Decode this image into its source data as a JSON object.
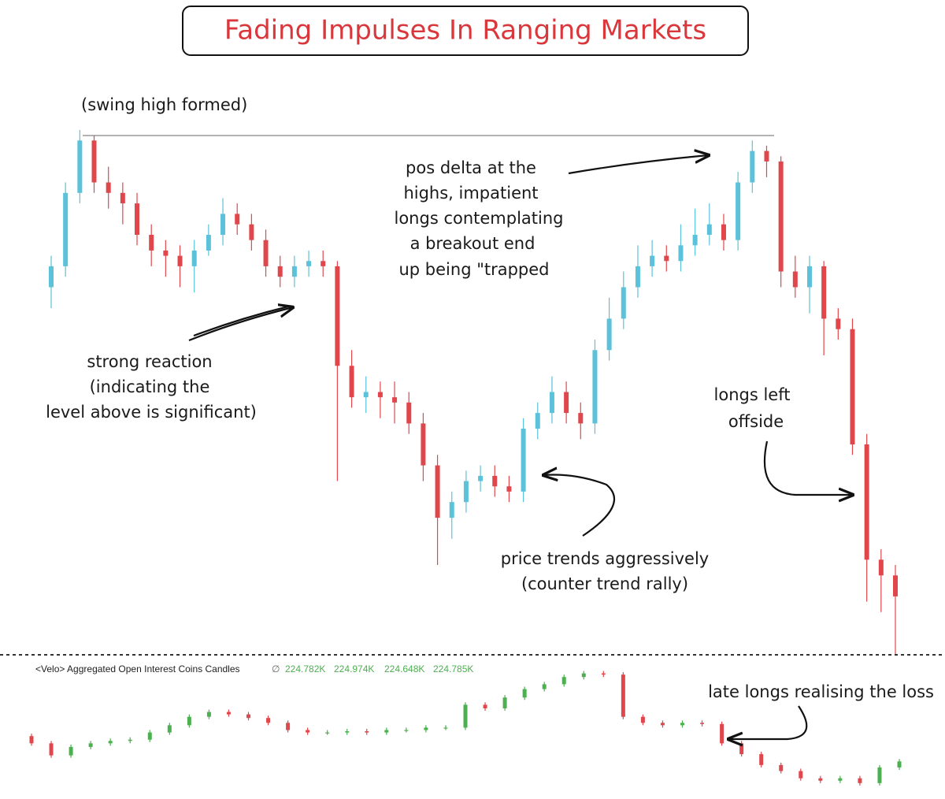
{
  "chart_data": [
    {
      "type": "candlestick",
      "title": "Fading Impulses In Ranging Markets",
      "up_color": "#5bc2d9",
      "down_color": "#e0474c",
      "ylim": [
        0,
        100
      ],
      "open": [
        70,
        74,
        88,
        98,
        90,
        88,
        86,
        80,
        77,
        76,
        74,
        77,
        80,
        84,
        82,
        79,
        74,
        72,
        74,
        75,
        74,
        55,
        49,
        50,
        49,
        48,
        44,
        36,
        26,
        29,
        33,
        34,
        32,
        31,
        43,
        46,
        50,
        46,
        44,
        58,
        64,
        70,
        74,
        76,
        75,
        78,
        80,
        82,
        79,
        90,
        96,
        94,
        73,
        70,
        74,
        64,
        62,
        40,
        18,
        15
      ],
      "high": [
        76,
        90,
        100,
        99,
        93,
        90,
        88,
        82,
        79,
        78,
        79,
        82,
        87,
        86,
        84,
        81,
        76,
        76,
        77,
        77,
        75,
        58,
        53,
        52,
        52,
        50,
        46,
        38,
        31,
        35,
        36,
        36,
        34,
        45,
        48,
        53,
        52,
        48,
        60,
        68,
        73,
        78,
        79,
        78,
        82,
        85,
        86,
        84,
        92,
        98,
        97,
        95,
        76,
        76,
        75,
        66,
        64,
        42,
        20,
        17
      ],
      "low": [
        66,
        72,
        86,
        88,
        85,
        82,
        78,
        74,
        72,
        70,
        69,
        76,
        78,
        80,
        77,
        72,
        70,
        70,
        72,
        72,
        33,
        47,
        46,
        45,
        44,
        42,
        33,
        17,
        22,
        27,
        31,
        30,
        29,
        29,
        41,
        44,
        44,
        41,
        42,
        56,
        62,
        68,
        72,
        73,
        73,
        76,
        78,
        77,
        77,
        88,
        91,
        70,
        68,
        65,
        57,
        60,
        38,
        10,
        8,
        0
      ],
      "close": [
        74,
        88,
        98,
        90,
        88,
        86,
        80,
        77,
        76,
        74,
        77,
        80,
        84,
        82,
        79,
        74,
        72,
        74,
        75,
        74,
        55,
        49,
        50,
        49,
        48,
        44,
        36,
        26,
        29,
        33,
        34,
        32,
        31,
        43,
        46,
        50,
        46,
        44,
        58,
        64,
        70,
        74,
        76,
        75,
        78,
        80,
        82,
        79,
        90,
        96,
        94,
        73,
        70,
        74,
        64,
        62,
        40,
        18,
        15,
        11
      ],
      "annotations": [
        {
          "lines": [
            "(swing high formed)"
          ]
        },
        {
          "lines": [
            "pos delta at the",
            "highs, impatient",
            "longs contemplating",
            "a breakout end",
            "up being \"trapped"
          ]
        },
        {
          "lines": [
            "strong reaction",
            "(indicating the",
            "level above is significant)"
          ]
        },
        {
          "lines": [
            "longs left",
            "offside"
          ]
        },
        {
          "lines": [
            "price trends aggressively",
            "(counter trend rally)"
          ]
        }
      ]
    },
    {
      "type": "candlestick",
      "title": "<Velo> Aggregated Open Interest Coins Candles",
      "symbol": "∅",
      "header_values": [
        "224.782K",
        "224.974K",
        "224.648K",
        "224.785K"
      ],
      "up_color": "#4caf50",
      "down_color": "#e0474c",
      "ylim": [
        0,
        100
      ],
      "open": [
        45,
        39,
        29,
        36,
        39,
        41,
        42,
        48,
        54,
        61,
        65,
        63,
        60,
        56,
        50,
        48,
        48,
        49,
        48,
        50,
        50,
        52,
        52,
        71,
        68,
        77,
        84,
        88,
        94,
        97,
        96,
        61,
        56,
        54,
        56,
        55,
        39,
        30,
        21,
        16,
        10,
        8,
        10,
        6,
        19
      ],
      "high": [
        47,
        41,
        38,
        41,
        43,
        44,
        50,
        56,
        63,
        67,
        67,
        65,
        62,
        58,
        52,
        50,
        51,
        51,
        52,
        52,
        54,
        54,
        73,
        73,
        79,
        86,
        90,
        96,
        99,
        99,
        98,
        63,
        58,
        58,
        58,
        57,
        41,
        32,
        23,
        18,
        12,
        12,
        12,
        21,
        26
      ],
      "low": [
        37,
        27,
        27,
        34,
        37,
        39,
        40,
        46,
        52,
        59,
        61,
        58,
        54,
        48,
        46,
        46,
        46,
        46,
        46,
        48,
        48,
        50,
        50,
        66,
        66,
        75,
        82,
        86,
        92,
        94,
        59,
        54,
        52,
        52,
        53,
        37,
        28,
        19,
        14,
        8,
        6,
        6,
        4,
        4,
        17
      ],
      "close": [
        39,
        29,
        36,
        39,
        41,
        42,
        48,
        54,
        61,
        65,
        63,
        60,
        56,
        50,
        48,
        48,
        49,
        48,
        50,
        50,
        52,
        52,
        71,
        68,
        77,
        84,
        88,
        94,
        97,
        96,
        61,
        56,
        54,
        56,
        55,
        39,
        30,
        21,
        16,
        10,
        8,
        10,
        6,
        19,
        24
      ],
      "annotations": [
        {
          "lines": [
            "late longs realising the loss"
          ]
        }
      ]
    }
  ]
}
